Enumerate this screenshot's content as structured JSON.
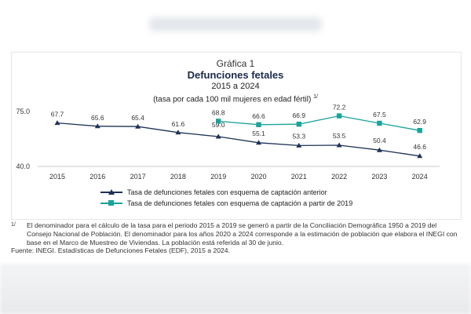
{
  "header": {
    "label": "Gráfica 1",
    "title": "Defunciones fetales",
    "period": "2015 a 2024",
    "unit": "(tasa por cada 100 mil mujeres en edad fértil)",
    "unit_mark": "1/"
  },
  "chart_data": {
    "type": "line",
    "title": "Defunciones fetales",
    "x": [
      "2015",
      "2016",
      "2017",
      "2018",
      "2019",
      "2020",
      "2021",
      "2022",
      "2023",
      "2024"
    ],
    "ylim": [
      40.0,
      75.0
    ],
    "yticks": [
      "40.0",
      "75.0"
    ],
    "grid": false,
    "legend_position": "bottom-left",
    "series": [
      {
        "name": "Tasa de defunciones fetales con esquema de captación anterior",
        "marker": "triangle",
        "color": "#1e3257",
        "values": [
          67.7,
          65.6,
          65.4,
          61.6,
          59.0,
          55.1,
          53.3,
          53.5,
          50.4,
          46.6
        ],
        "labels": [
          "67.7",
          "65.6",
          "65.4",
          "61.6",
          "59.0",
          "55.1",
          "53.3",
          "53.5",
          "50.4",
          "46.6"
        ]
      },
      {
        "name": "Tasa de defunciones fetales con esquema de captación a partir de 2019",
        "marker": "square",
        "color": "#1aa39b",
        "values": [
          null,
          null,
          null,
          null,
          68.8,
          66.6,
          66.9,
          72.2,
          67.5,
          62.9
        ],
        "labels": [
          "",
          "",
          "",
          "",
          "68.8",
          "66.6",
          "66.9",
          "72.2",
          "67.5",
          "62.9"
        ]
      }
    ]
  },
  "notes": {
    "mark": "1/",
    "note_text": "El denominador para el cálculo de la tasa para el periodo 2015 a 2019 se generó a partir de la Conciliación Demográfica 1950 a 2019 del Consejo Nacional de Población. El denominador para los años 2020 a 2024 corresponde a la estimación de población que elabora el INEGI con base en el Marco de Muestreo de Viviendas. La población está referida al 30 de junio.",
    "source": "Fuente: INEGI. Estadísticas de Defunciones Fetales (EDF), 2015 a 2024."
  }
}
